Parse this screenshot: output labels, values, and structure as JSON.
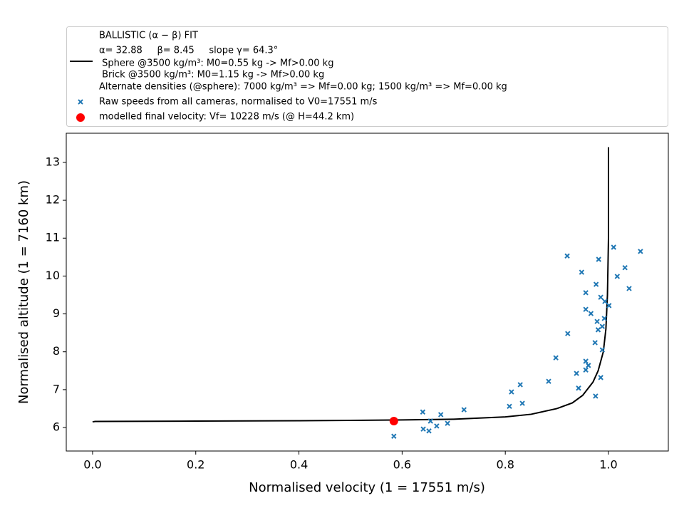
{
  "chart_data": {
    "type": "line-scatter",
    "xlabel": "Normalised velocity (1 = 17551 m/s)",
    "ylabel": "Normalised altitude (1 = 7160 km)",
    "xlim": [
      -0.051,
      1.116
    ],
    "ylim": [
      5.38,
      13.77
    ],
    "xticks": [
      {
        "value": 0,
        "label": "0.0"
      },
      0.2,
      0.4,
      0.6,
      0.8,
      {
        "value": 1,
        "label": "1.0"
      }
    ],
    "yticks": [
      6,
      7,
      8,
      9,
      10,
      11,
      12,
      13
    ],
    "series": [
      {
        "type": "line",
        "name": [
          "BALLISTIC (α − β) FIT",
          "α= 32.88     β= 8.45     slope γ= 64.3°",
          " Sphere @3500 kg/m³: M0=0.55 kg -> Mf>0.00 kg",
          " Brick @3500 kg/m³: M0=1.15 kg -> Mf>0.00 kg",
          "Alternate densities (@sphere): 7000 kg/m³ => Mf=0.00 kg; 1500 kg/m³ => Mf=0.00 kg"
        ],
        "color": "#000000",
        "x": [
          0,
          0.005,
          0.2,
          0.4,
          0.6,
          0.7,
          0.8,
          0.85,
          0.9,
          0.93,
          0.95,
          0.97,
          0.98,
          0.99,
          0.995,
          0.998,
          1.0,
          1.0
        ],
        "values": [
          6.15,
          6.16,
          6.17,
          6.18,
          6.2,
          6.22,
          6.28,
          6.35,
          6.5,
          6.65,
          6.85,
          7.2,
          7.5,
          8.0,
          8.6,
          9.5,
          11,
          13.4
        ]
      },
      {
        "type": "scatter",
        "name": "Raw speeds from all cameras, normalised to V0=17551 m/s",
        "color": "#1f77b4",
        "x": [
          0.584,
          0.64,
          0.641,
          0.652,
          0.655,
          0.667,
          0.675,
          0.688,
          0.72,
          0.808,
          0.812,
          0.829,
          0.833,
          0.884,
          0.898,
          0.921,
          0.92,
          0.938,
          0.942,
          0.948,
          0.956,
          0.956,
          0.956,
          0.956,
          0.961,
          0.966,
          0.974,
          0.975,
          0.976,
          0.978,
          0.98,
          0.981,
          0.985,
          0.985,
          0.988,
          0.988,
          0.992,
          0.993,
          1.001,
          1.01,
          1.017,
          1.032,
          1.04,
          1.062
        ],
        "values": [
          5.77,
          6.41,
          5.96,
          5.91,
          6.17,
          6.04,
          6.34,
          6.11,
          6.47,
          6.56,
          6.94,
          7.13,
          6.64,
          7.22,
          7.84,
          8.48,
          10.53,
          7.43,
          7.04,
          10.1,
          9.56,
          9.12,
          7.75,
          7.52,
          7.64,
          9.01,
          8.24,
          6.83,
          9.78,
          8.8,
          8.58,
          10.44,
          9.44,
          7.32,
          8.05,
          8.67,
          8.88,
          9.33,
          9.22,
          10.76,
          9.99,
          10.22,
          9.67,
          10.65
        ]
      },
      {
        "type": "point",
        "name": "modelled final velocity: Vf= 10228 m/s (@ H=44.2 km)",
        "color": "#ff0000",
        "x": [
          0.584
        ],
        "values": [
          6.17
        ]
      }
    ]
  }
}
